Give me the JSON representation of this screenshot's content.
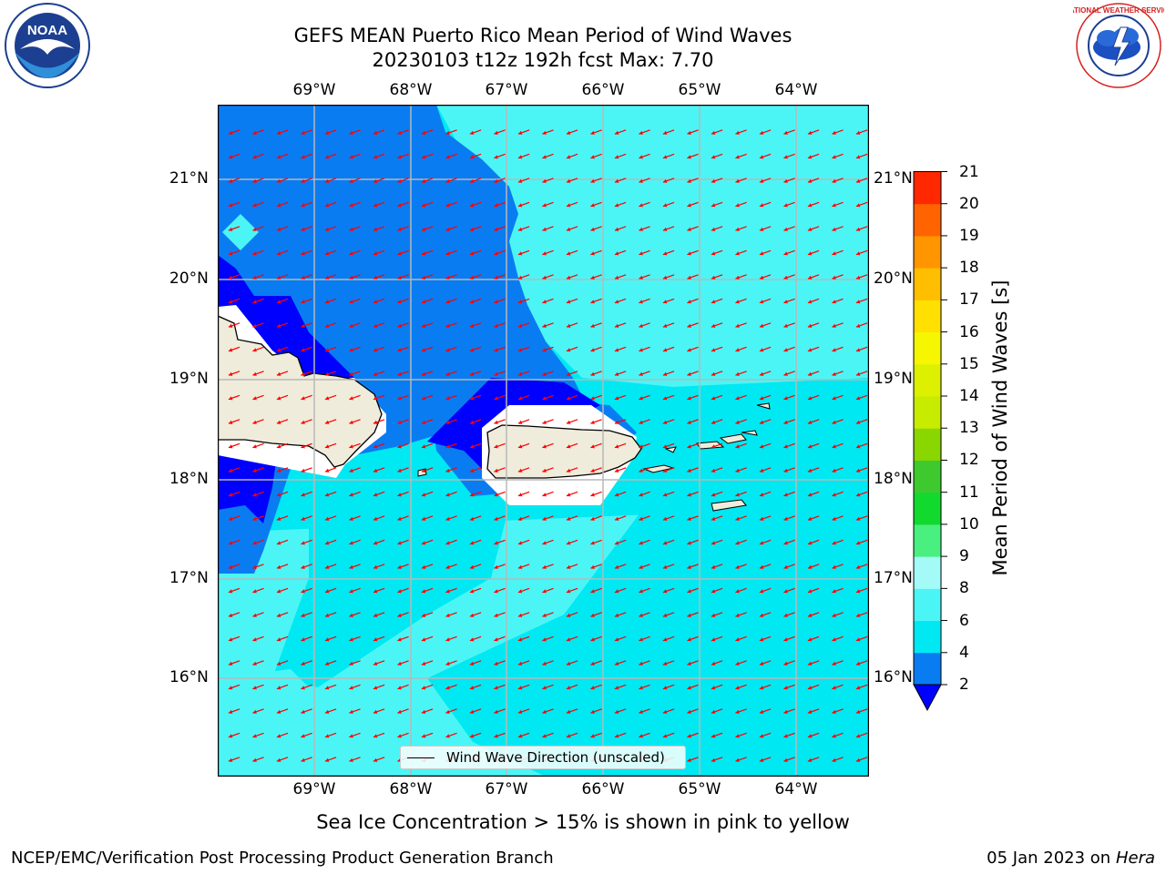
{
  "title": {
    "line1": "GEFS MEAN Puerto Rico Mean Period of Wind Waves",
    "line2": "20230103 t12z 192h fcst   Max: 7.70"
  },
  "lon_labels": [
    "69°W",
    "68°W",
    "67°W",
    "66°W",
    "65°W",
    "64°W"
  ],
  "lat_labels": [
    "21°N",
    "20°N",
    "19°N",
    "18°N",
    "17°N",
    "16°N"
  ],
  "colorbar": {
    "label": "Mean Period of Wind Waves [s]",
    "ticks": [
      "2",
      "4",
      "6",
      "8",
      "9",
      "10",
      "11",
      "12",
      "13",
      "14",
      "15",
      "16",
      "17",
      "18",
      "19",
      "20",
      "21"
    ],
    "colors": [
      "#0a7cf2",
      "#00e8f2",
      "#4cf5f5",
      "#a4faf6",
      "#49f07f",
      "#12d92e",
      "#3ec92e",
      "#8ad600",
      "#c8ec00",
      "#dcf000",
      "#f6f600",
      "#ffe000",
      "#ffbe00",
      "#ff9600",
      "#ff6400",
      "#ff2800"
    ],
    "under_color": "#0000ff"
  },
  "legend": {
    "label": "Wind Wave Direction (unscaled)"
  },
  "note": "Sea Ice Concentration > 15% is shown in pink to yellow",
  "footer": {
    "left": "NCEP/EMC/Verification Post Processing Product Generation Branch",
    "date": "05 Jan 2023 on ",
    "machine": "Hera"
  },
  "logos": {
    "noaa_text": "NOAA",
    "nws_text": "NATIONAL WEATHER SERVICE"
  },
  "colors": {
    "land": "#efecdc",
    "arrow": "#ff0000",
    "grid": "#b8b8b8"
  }
}
